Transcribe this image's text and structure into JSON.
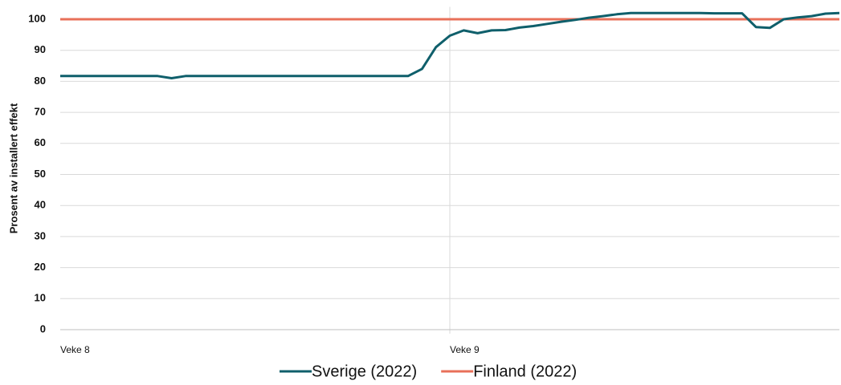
{
  "chart_data": {
    "type": "line",
    "y_label": "Prosent av installert effekt",
    "categories": [
      "Veke 8",
      null,
      null,
      null,
      null,
      null,
      null,
      null,
      null,
      null,
      null,
      null,
      null,
      null,
      null,
      null,
      null,
      null,
      null,
      null,
      null,
      null,
      null,
      null,
      null,
      null,
      null,
      null,
      "Veke 9",
      null,
      null,
      null,
      null,
      null,
      null,
      null,
      null,
      null,
      null,
      null,
      null,
      null,
      null,
      null,
      null,
      null,
      null,
      null,
      null,
      null,
      null,
      null,
      null,
      null,
      null,
      null,
      null
    ],
    "series": [
      {
        "name": "Sverige (2022)",
        "color": "#0f5f6b",
        "values": [
          81.7,
          81.7,
          81.7,
          81.7,
          81.7,
          81.7,
          81.7,
          81.7,
          81.0,
          81.7,
          81.7,
          81.7,
          81.7,
          81.7,
          81.7,
          81.7,
          81.7,
          81.7,
          81.7,
          81.7,
          81.7,
          81.7,
          81.7,
          81.7,
          81.7,
          81.7,
          84,
          91,
          94.7,
          96.4,
          95.5,
          96.4,
          96.5,
          97.3,
          97.8,
          98.5,
          99.2,
          99.8,
          100.5,
          101,
          101.6,
          102,
          102,
          102,
          102,
          102,
          102,
          101.9,
          101.9,
          101.9,
          97.5,
          97.2,
          100,
          100.6,
          101,
          101.8,
          102
        ]
      },
      {
        "name": "Finland (2022)",
        "color": "#e8705a",
        "values": [
          100,
          100,
          100,
          100,
          100,
          100,
          100,
          100,
          100,
          100,
          100,
          100,
          100,
          100,
          100,
          100,
          100,
          100,
          100,
          100,
          100,
          100,
          100,
          100,
          100,
          100,
          100,
          100,
          100,
          100,
          100,
          100,
          100,
          100,
          100,
          100,
          100,
          100,
          100,
          100,
          100,
          100,
          100,
          100,
          100,
          100,
          100,
          100,
          100,
          100,
          100,
          100,
          100,
          100,
          100,
          100,
          100
        ]
      }
    ],
    "ylim": [
      0,
      104
    ],
    "yticks": [
      0,
      10,
      20,
      30,
      40,
      50,
      60,
      70,
      80,
      90,
      100
    ],
    "grid": true
  }
}
